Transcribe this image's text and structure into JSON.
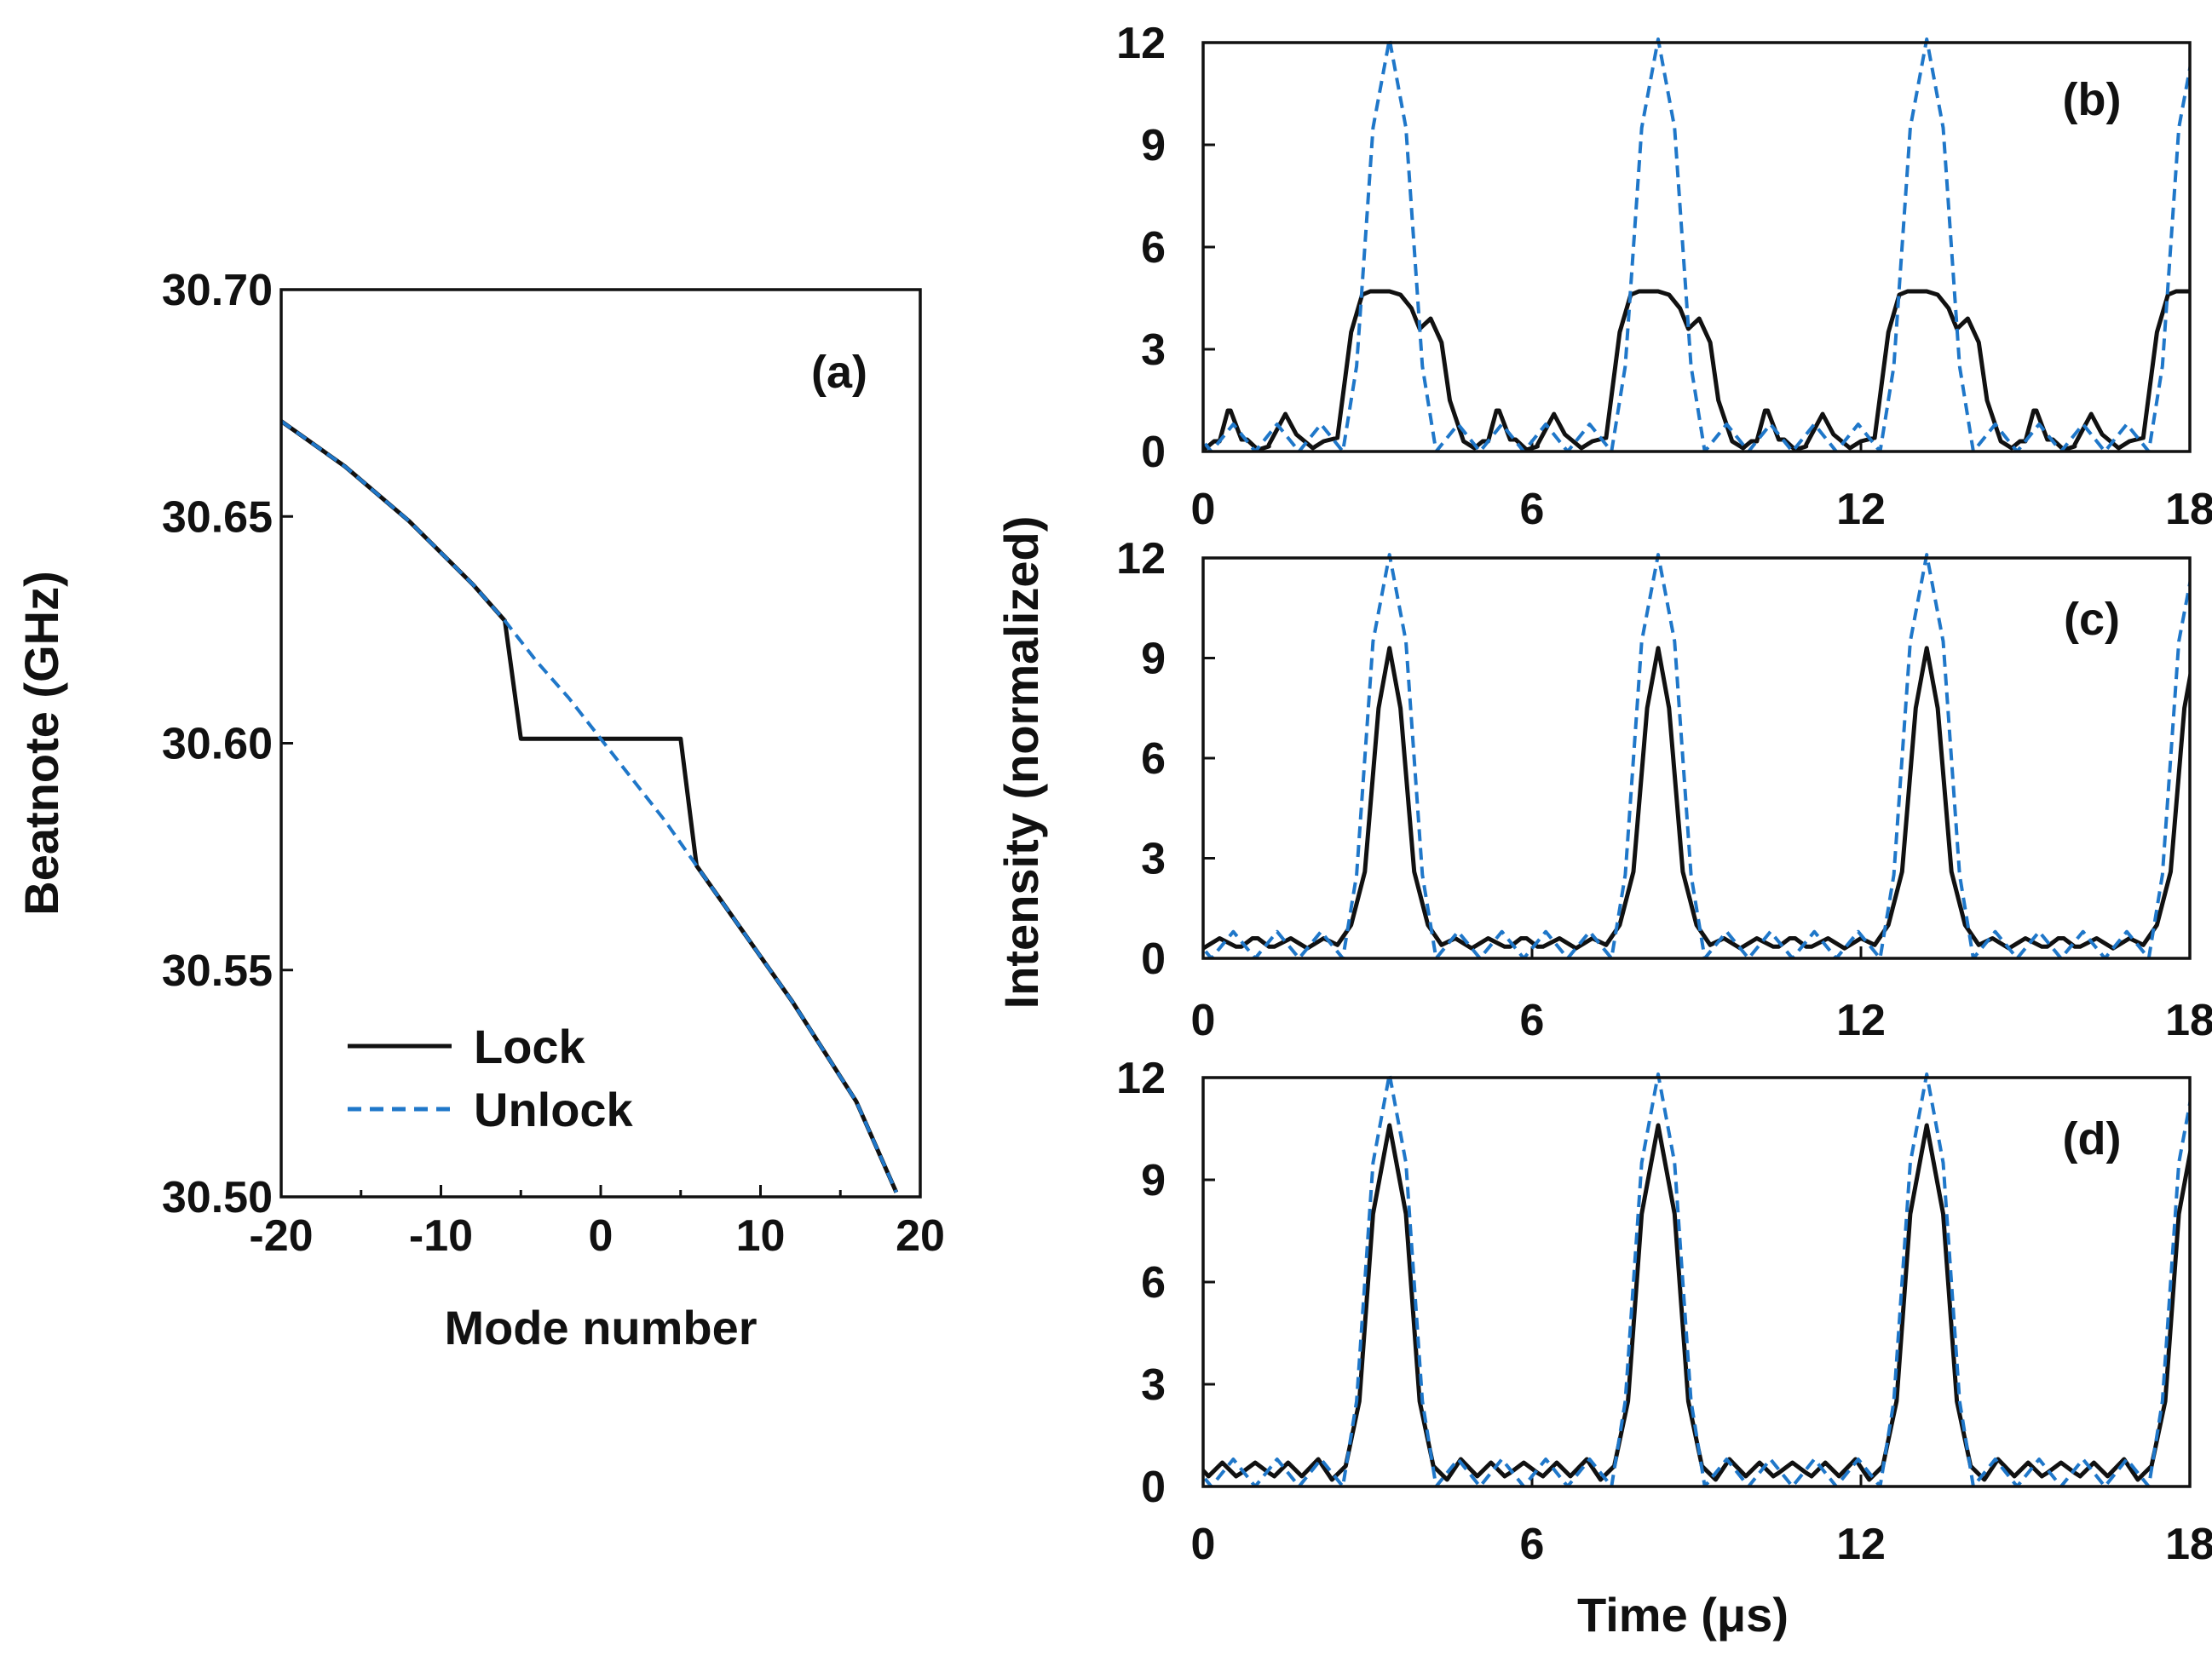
{
  "figure": {
    "colors": {
      "lock": "#111111",
      "unlock": "#1f77c9",
      "axes": "#111111"
    },
    "legend": {
      "lock_label": "Lock",
      "unlock_label": "Unlock"
    },
    "shared_ylabel": "Intensity (normalized)",
    "shared_xlabel": "Time (μs)"
  },
  "chart_data": [
    {
      "type": "line",
      "panel": "(a)",
      "xlabel": "Mode number",
      "ylabel": "Beatnote (GHz)",
      "xlim": [
        -20,
        20
      ],
      "ylim": [
        30.5,
        30.7
      ],
      "xticks": [
        -20,
        -10,
        0,
        10,
        20
      ],
      "xtick_labels": [
        "-20",
        "-10",
        "0",
        "10",
        "20"
      ],
      "yticks": [
        30.5,
        30.55,
        30.6,
        30.65,
        30.7
      ],
      "ytick_labels": [
        "30.50",
        "30.55",
        "30.60",
        "30.65",
        "30.70"
      ],
      "legend_position": "bottom-left",
      "series": [
        {
          "name": "Lock",
          "style": "solid",
          "x": [
            -20,
            -16,
            -12,
            -8,
            -6,
            -5,
            5,
            6,
            8,
            12,
            16,
            18.5
          ],
          "y": [
            30.671,
            30.661,
            30.649,
            30.635,
            30.627,
            30.601,
            30.601,
            30.573,
            30.563,
            30.543,
            30.521,
            30.501
          ]
        },
        {
          "name": "Unlock",
          "style": "dashed",
          "x": [
            -20,
            -16,
            -12,
            -8,
            -6,
            -4,
            -2,
            0,
            2,
            4,
            6,
            8,
            12,
            16,
            18.5
          ],
          "y": [
            30.671,
            30.661,
            30.649,
            30.635,
            30.627,
            30.618,
            30.61,
            30.601,
            30.592,
            30.583,
            30.573,
            30.563,
            30.543,
            30.521,
            30.501
          ]
        }
      ]
    },
    {
      "type": "line",
      "panel": "(b)",
      "xlim": [
        0,
        18
      ],
      "ylim": [
        0,
        12
      ],
      "xticks": [
        0,
        6,
        12,
        18
      ],
      "xtick_labels": [
        "0",
        "6",
        "12",
        "18"
      ],
      "yticks": [
        0,
        3,
        6,
        9,
        12
      ],
      "ytick_labels": [
        "0",
        "3",
        "6",
        "9",
        "12"
      ],
      "period": 4.9,
      "first_peak": 3.4,
      "series": [
        {
          "name": "Lock",
          "style": "solid",
          "offsets": [
            -3.4,
            -3.1,
            -2.9,
            -2.6,
            -2.4,
            -2.2,
            -1.9,
            -1.7,
            -1.4,
            -1.2,
            -0.95,
            -0.7,
            -0.5,
            -0.35,
            0.0,
            0.2,
            0.4,
            0.55,
            0.75,
            0.95,
            1.1,
            1.35,
            1.55,
            1.7,
            1.95,
            2.2,
            2.5,
            2.7
          ],
          "values": [
            0.15,
            0.3,
            1.2,
            0.35,
            0.05,
            0.2,
            1.1,
            0.5,
            0.1,
            0.3,
            0.4,
            3.5,
            4.6,
            4.7,
            4.7,
            4.6,
            4.2,
            3.6,
            3.9,
            3.2,
            1.5,
            0.3,
            0.1,
            0.3,
            1.2,
            0.35,
            0.05,
            0.15
          ]
        },
        {
          "name": "Unlock",
          "style": "dashed",
          "offsets": [
            -2.45,
            -2.05,
            -1.65,
            -1.25,
            -0.85,
            -0.6,
            -0.3,
            0.0,
            0.3,
            0.6,
            0.85,
            1.25,
            1.65,
            2.05,
            2.45
          ],
          "values": [
            0.0,
            0.8,
            0.0,
            0.8,
            0.0,
            2.5,
            9.5,
            12.1,
            9.5,
            2.5,
            0.0,
            0.8,
            0.0,
            0.8,
            0.0
          ]
        }
      ]
    },
    {
      "type": "line",
      "panel": "(c)",
      "xlim": [
        0,
        18
      ],
      "ylim": [
        0,
        12
      ],
      "xticks": [
        0,
        6,
        12,
        18
      ],
      "xtick_labels": [
        "0",
        "6",
        "12",
        "18"
      ],
      "yticks": [
        0,
        3,
        6,
        9,
        12
      ],
      "ytick_labels": [
        "0",
        "3",
        "6",
        "9",
        "12"
      ],
      "period": 4.9,
      "first_peak": 3.4,
      "series": [
        {
          "name": "Lock",
          "style": "solid",
          "offsets": [
            -2.7,
            -2.4,
            -2.1,
            -1.8,
            -1.5,
            -1.2,
            -0.95,
            -0.7,
            -0.45,
            -0.2,
            0.0,
            0.2,
            0.45,
            0.7,
            0.95,
            1.2,
            1.5,
            1.8,
            2.1,
            2.4,
            2.7
          ],
          "values": [
            0.35,
            0.6,
            0.35,
            0.6,
            0.3,
            0.6,
            0.4,
            1.0,
            2.6,
            7.5,
            9.3,
            7.5,
            2.6,
            1.0,
            0.4,
            0.6,
            0.3,
            0.6,
            0.35,
            0.6,
            0.35
          ]
        },
        {
          "name": "Unlock",
          "style": "dashed",
          "offsets": [
            -2.45,
            -2.05,
            -1.65,
            -1.25,
            -0.85,
            -0.6,
            -0.3,
            0.0,
            0.3,
            0.6,
            0.85,
            1.25,
            1.65,
            2.05,
            2.45
          ],
          "values": [
            0.0,
            0.8,
            0.0,
            0.8,
            0.0,
            2.5,
            9.5,
            12.1,
            9.5,
            2.5,
            0.0,
            0.8,
            0.0,
            0.8,
            0.0
          ]
        }
      ]
    },
    {
      "type": "line",
      "panel": "(d)",
      "xlabel": "Time (μs)",
      "xlim": [
        0,
        18
      ],
      "ylim": [
        0,
        12
      ],
      "xticks": [
        0,
        6,
        12,
        18
      ],
      "xtick_labels": [
        "0",
        "6",
        "12",
        "18"
      ],
      "yticks": [
        0,
        3,
        6,
        9,
        12
      ],
      "ytick_labels": [
        "0",
        "3",
        "6",
        "9",
        "12"
      ],
      "period": 4.9,
      "first_peak": 3.4,
      "series": [
        {
          "name": "Lock",
          "style": "solid",
          "offsets": [
            -2.7,
            -2.45,
            -2.1,
            -1.85,
            -1.6,
            -1.3,
            -1.05,
            -0.8,
            -0.55,
            -0.3,
            0.0,
            0.3,
            0.55,
            0.8,
            1.05,
            1.3,
            1.6,
            1.85,
            2.1,
            2.45,
            2.7
          ],
          "values": [
            0.4,
            0.7,
            0.3,
            0.7,
            0.3,
            0.8,
            0.2,
            0.6,
            2.5,
            8.0,
            10.6,
            8.0,
            2.5,
            0.6,
            0.2,
            0.8,
            0.3,
            0.7,
            0.3,
            0.7,
            0.4
          ]
        },
        {
          "name": "Unlock",
          "style": "dashed",
          "offsets": [
            -2.45,
            -2.05,
            -1.65,
            -1.25,
            -0.85,
            -0.6,
            -0.3,
            0.0,
            0.3,
            0.6,
            0.85,
            1.25,
            1.65,
            2.05,
            2.45
          ],
          "values": [
            0.0,
            0.8,
            0.0,
            0.8,
            0.0,
            2.5,
            9.5,
            12.1,
            9.5,
            2.5,
            0.0,
            0.8,
            0.0,
            0.8,
            0.0
          ]
        }
      ]
    }
  ]
}
